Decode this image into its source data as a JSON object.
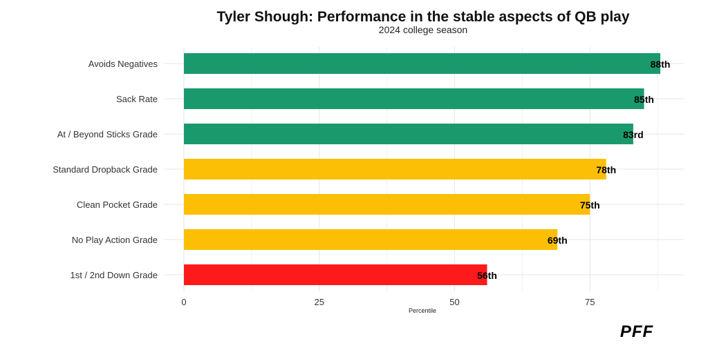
{
  "header": {
    "title": "Tyler Shough: Performance in the stable aspects of QB play",
    "subtitle": "2024 college season"
  },
  "logo": {
    "text": "PFF"
  },
  "colors": {
    "elite": "#1a9a6c",
    "good": "#fcbf06",
    "poor": "#fc1a1a"
  },
  "chart_data": {
    "type": "bar",
    "orientation": "horizontal",
    "title": "Tyler Shough: Performance in the stable aspects of QB play",
    "subtitle": "2024 college season",
    "xlabel": "Percentile",
    "ylabel": "",
    "xlim": [
      0,
      92
    ],
    "x_ticks": [
      0,
      25,
      50,
      75
    ],
    "grid": true,
    "legend": "none",
    "categories": [
      "Avoids Negatives",
      "Sack Rate",
      "At / Beyond Sticks Grade",
      "Standard Dropback Grade",
      "Clean Pocket Grade",
      "No Play Action Grade",
      "1st / 2nd Down Grade"
    ],
    "values": [
      88,
      85,
      83,
      78,
      75,
      69,
      56
    ],
    "labels": [
      "88th",
      "85th",
      "83rd",
      "78th",
      "75th",
      "69th",
      "56th"
    ],
    "bar_colors": [
      "#1a9a6c",
      "#1a9a6c",
      "#1a9a6c",
      "#fcbf06",
      "#fcbf06",
      "#fcbf06",
      "#fc1a1a"
    ]
  }
}
